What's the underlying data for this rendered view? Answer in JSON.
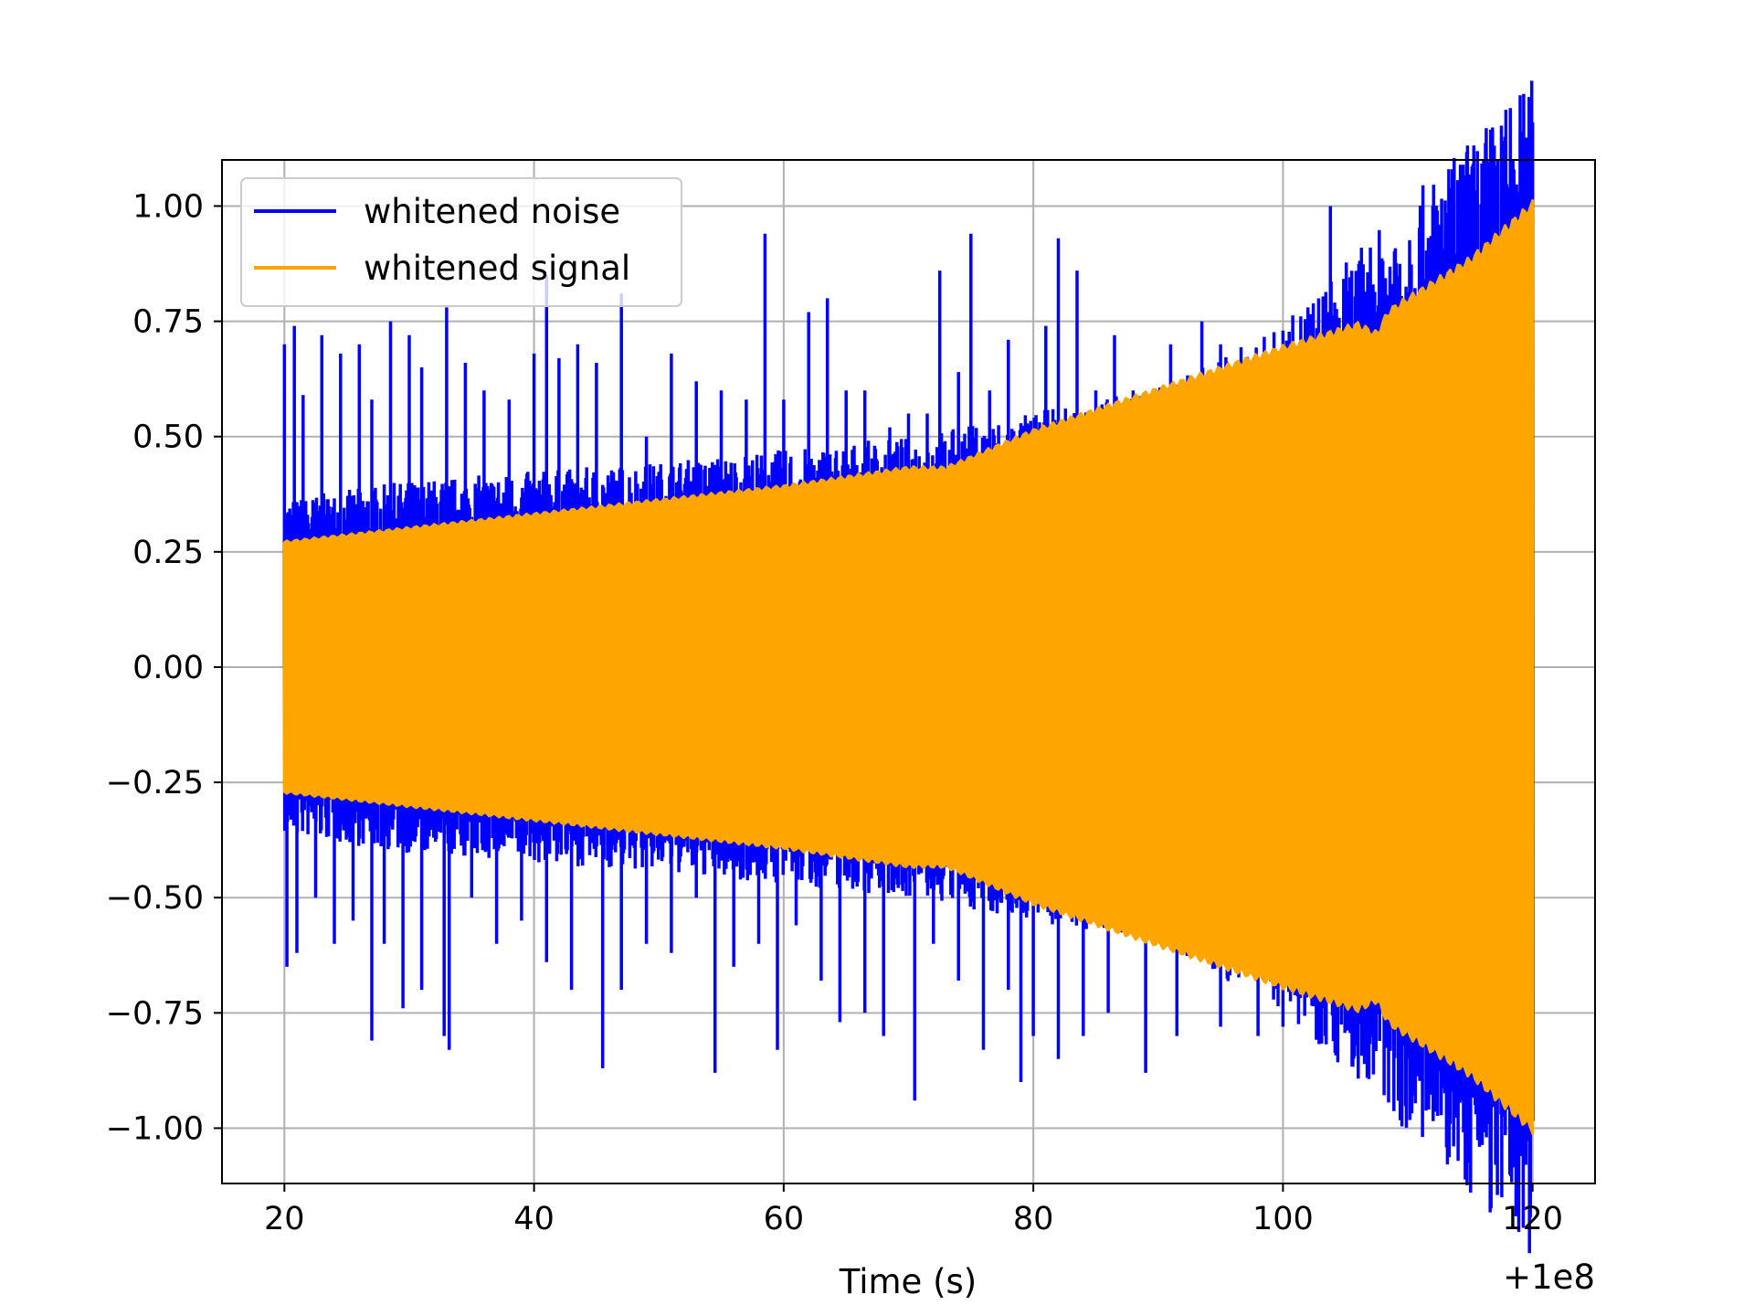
{
  "chart_data": {
    "type": "line",
    "xlabel": "Time (s)",
    "x_offset_label": "+1e8",
    "xlim": [
      15,
      125
    ],
    "ylim": [
      -1.12,
      1.1
    ],
    "grid": true,
    "legend": "upper-left",
    "x_ticks": [
      20,
      40,
      60,
      80,
      100,
      120
    ],
    "x_tick_labels": [
      "20",
      "40",
      "60",
      "80",
      "100",
      "120"
    ],
    "y_ticks": [
      1.0,
      0.75,
      0.5,
      0.25,
      0.0,
      -0.25,
      -0.5,
      -0.75,
      -1.0
    ],
    "y_tick_labels": [
      "1.00",
      "0.75",
      "0.50",
      "0.25",
      "0.00",
      "−0.25",
      "−0.50",
      "−0.75",
      "−1.00"
    ],
    "series": [
      {
        "name": "whitened noise",
        "color": "#0000ff",
        "x_range": [
          20,
          120
        ],
        "base_envelope": [
          [
            20,
            0.27
          ],
          [
            30,
            0.3
          ],
          [
            50,
            0.33
          ],
          [
            70,
            0.37
          ],
          [
            90,
            0.45
          ],
          [
            100,
            0.55
          ],
          [
            110,
            0.75
          ],
          [
            120,
            0.95
          ]
        ],
        "peaks": [
          [
            20.0,
            0.7
          ],
          [
            20.8,
            0.74
          ],
          [
            21.5,
            0.59
          ],
          [
            23.0,
            0.72
          ],
          [
            24.5,
            0.68
          ],
          [
            26.0,
            0.7
          ],
          [
            27.0,
            0.58
          ],
          [
            28.5,
            0.75
          ],
          [
            30.0,
            0.72
          ],
          [
            31.0,
            0.65
          ],
          [
            33.0,
            0.78
          ],
          [
            34.5,
            0.66
          ],
          [
            36.0,
            0.6
          ],
          [
            38.0,
            0.58
          ],
          [
            40.0,
            0.68
          ],
          [
            41.0,
            0.85
          ],
          [
            42.0,
            0.67
          ],
          [
            43.5,
            0.7
          ],
          [
            45.0,
            0.66
          ],
          [
            47.0,
            0.81
          ],
          [
            49.0,
            0.5
          ],
          [
            51.0,
            0.68
          ],
          [
            53.0,
            0.62
          ],
          [
            55.0,
            0.6
          ],
          [
            57.0,
            0.58
          ],
          [
            58.5,
            0.94
          ],
          [
            60.0,
            0.58
          ],
          [
            62.0,
            0.77
          ],
          [
            63.5,
            0.8
          ],
          [
            65.0,
            0.6
          ],
          [
            66.5,
            0.6
          ],
          [
            68.5,
            0.52
          ],
          [
            70.0,
            0.55
          ],
          [
            71.5,
            0.55
          ],
          [
            72.5,
            0.86
          ],
          [
            74.0,
            0.64
          ],
          [
            75.0,
            0.94
          ],
          [
            76.5,
            0.6
          ],
          [
            78.0,
            0.71
          ],
          [
            79.5,
            0.48
          ],
          [
            81.0,
            0.74
          ],
          [
            82.0,
            0.93
          ],
          [
            83.5,
            0.86
          ],
          [
            85.0,
            0.6
          ],
          [
            86.5,
            0.72
          ],
          [
            88.0,
            0.6
          ],
          [
            90.0,
            0.6
          ],
          [
            91.0,
            0.7
          ],
          [
            93.5,
            0.75
          ],
          [
            95.0,
            0.7
          ],
          [
            98.0,
            0.6
          ],
          [
            100.0,
            0.73
          ],
          [
            102.0,
            0.78
          ],
          [
            103.8,
            1.0
          ],
          [
            108.0,
            0.8
          ],
          [
            112.0,
            0.82
          ],
          [
            116.0,
            0.86
          ],
          [
            118.0,
            0.9
          ]
        ],
        "troughs": [
          [
            20.2,
            -0.65
          ],
          [
            21.0,
            -0.62
          ],
          [
            22.5,
            -0.5
          ],
          [
            24.0,
            -0.6
          ],
          [
            25.5,
            -0.55
          ],
          [
            27.0,
            -0.81
          ],
          [
            28.0,
            -0.6
          ],
          [
            29.5,
            -0.74
          ],
          [
            31.0,
            -0.7
          ],
          [
            32.8,
            -0.8
          ],
          [
            33.2,
            -0.83
          ],
          [
            35.0,
            -0.5
          ],
          [
            37.0,
            -0.6
          ],
          [
            39.0,
            -0.55
          ],
          [
            41.0,
            -0.64
          ],
          [
            43.0,
            -0.7
          ],
          [
            45.5,
            -0.87
          ],
          [
            47.0,
            -0.7
          ],
          [
            49.0,
            -0.6
          ],
          [
            51.0,
            -0.62
          ],
          [
            53.0,
            -0.5
          ],
          [
            54.5,
            -0.88
          ],
          [
            56.0,
            -0.65
          ],
          [
            58.0,
            -0.6
          ],
          [
            59.5,
            -0.83
          ],
          [
            61.0,
            -0.56
          ],
          [
            63.0,
            -0.68
          ],
          [
            64.5,
            -0.77
          ],
          [
            66.5,
            -0.75
          ],
          [
            68.0,
            -0.8
          ],
          [
            70.5,
            -0.94
          ],
          [
            72.0,
            -0.6
          ],
          [
            74.0,
            -0.68
          ],
          [
            76.0,
            -0.83
          ],
          [
            78.0,
            -0.7
          ],
          [
            79.0,
            -0.9
          ],
          [
            80.0,
            -0.8
          ],
          [
            82.0,
            -0.85
          ],
          [
            84.0,
            -0.8
          ],
          [
            86.0,
            -0.75
          ],
          [
            89.0,
            -0.88
          ],
          [
            91.5,
            -0.8
          ],
          [
            95.0,
            -0.78
          ],
          [
            98.0,
            -0.8
          ],
          [
            100.0,
            -0.78
          ],
          [
            103.0,
            -0.78
          ],
          [
            106.0,
            -0.82
          ],
          [
            110.0,
            -0.85
          ],
          [
            114.0,
            -0.9
          ],
          [
            116.3,
            -1.02
          ],
          [
            118.0,
            -0.96
          ]
        ]
      },
      {
        "name": "whitened signal",
        "color": "#ffa500",
        "x_range": [
          20,
          120
        ],
        "envelope": [
          [
            20,
            0.27
          ],
          [
            30,
            0.3
          ],
          [
            40,
            0.33
          ],
          [
            50,
            0.36
          ],
          [
            60,
            0.39
          ],
          [
            70,
            0.43
          ],
          [
            73,
            0.43
          ],
          [
            80,
            0.51
          ],
          [
            90,
            0.6
          ],
          [
            100,
            0.69
          ],
          [
            106,
            0.74
          ],
          [
            107.5,
            0.72
          ],
          [
            108.5,
            0.77
          ],
          [
            115,
            0.88
          ],
          [
            120,
            1.0
          ]
        ]
      }
    ]
  }
}
